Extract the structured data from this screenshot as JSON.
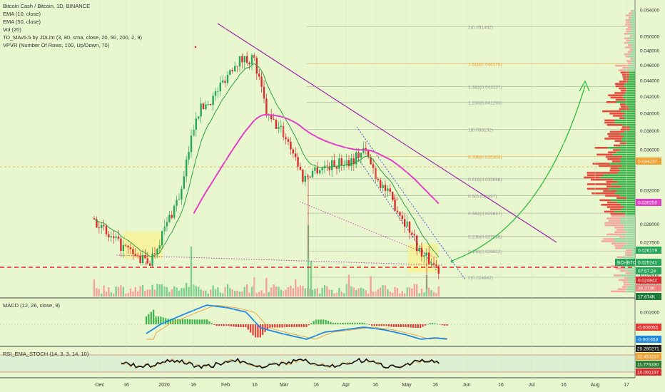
{
  "legend": {
    "title": "Bitcoin Cash / Bitcoin, 1D, BINANCE",
    "ema10": "EMA (10, close)",
    "ema50": "EMA (50, close)",
    "vol": "Vol (20)",
    "tdmav": "TD_MAv5.5 by JDLim (3, 80, sma, close, 20, 50, 200, 2, 9)",
    "vpvr": "VPVR (Number Of Rows, 100, Up/Down, 70)"
  },
  "macd_label": "MACD (12, 26, close, 9)",
  "rsi_label": "RSI_EMA_STOCH (14, 3, 3, 14, 10)",
  "colors": {
    "background": "#e9f7cf",
    "up": "#26a65b",
    "down": "#d92b2b",
    "ema10": "#2e9e3e",
    "ema50": "#e040c8",
    "trendline": "#9c27b0",
    "arrow": "#2ebd3e",
    "support": "#e02020",
    "dashed_orange": "#f0a030",
    "macd_line": "#1e88e5",
    "signal_line": "#e8a040"
  },
  "fib_levels": [
    {
      "ratio": "2",
      "price": 0.051462,
      "label": "2(0.051462)",
      "color": "#9a9a9a"
    },
    {
      "ratio": "1.618",
      "price": 0.046178,
      "label": "1.618(0.046178)",
      "color": "#f0a030"
    },
    {
      "ratio": "1.382",
      "price": 0.043237,
      "label": "1.382(0.043237)",
      "color": "#9a9a9a"
    },
    {
      "ratio": "1.236",
      "price": 0.041293,
      "label": "1.236(0.041293)",
      "color": "#9a9a9a"
    },
    {
      "ratio": "1",
      "price": 0.038192,
      "label": "1(0.038192)",
      "color": "#9a9a9a"
    },
    {
      "ratio": "0.786",
      "price": 0.035304,
      "label": "0.786(0.035304)",
      "color": "#f0a030"
    },
    {
      "ratio": "0.618",
      "price": 0.033068,
      "label": "0.618(0.033068)",
      "color": "#9a9a9a"
    },
    {
      "ratio": "0.5",
      "price": 0.031497,
      "label": "0.5(0.031497)",
      "color": "#9a9a9a"
    },
    {
      "ratio": "0.382",
      "price": 0.029927,
      "label": "0.382(0.029927)",
      "color": "#9a9a9a"
    },
    {
      "ratio": "0.236",
      "price": 0.027986,
      "label": "0.236(0.027986)",
      "color": "#9a9a9a"
    },
    {
      "ratio": "0.148",
      "price": 0.026812,
      "label": "0.148(0.026812)",
      "color": "#9a9a9a"
    },
    {
      "ratio": "0",
      "price": 0.024842,
      "label": "0(0.024842)",
      "color": "#9a9a9a"
    }
  ],
  "price_ticks": [
    "0.054000",
    "0.050000",
    "0.048000",
    "0.046000",
    "0.044000",
    "0.042000",
    "0.040000",
    "0.038000",
    "0.036000",
    "0.032000",
    "0.029000",
    "0.027500",
    "0.025000"
  ],
  "price_tags": [
    {
      "text": "0.034237",
      "bg": "#f0a030",
      "fg": "#ffffff"
    },
    {
      "text": "0.026179",
      "bg": "#26a65b",
      "fg": "#ffffff"
    },
    {
      "text": "BCHBTC",
      "bg": "#26a65b",
      "fg": "#ffffff"
    },
    {
      "text": "0.025241",
      "bg": "#26a65b",
      "fg": "#ffffff"
    },
    {
      "text": "07:57:24",
      "bg": "#26a65b",
      "fg": "#ffffff"
    },
    {
      "text": "0.024842",
      "bg": "#d92b2b",
      "fg": "#ffffff"
    },
    {
      "text": "36.373K",
      "bg": "#f08080",
      "fg": "#ffffff"
    },
    {
      "text": "17.674K",
      "bg": "#1e7a3a",
      "fg": "#ffffff"
    },
    {
      "text": "0.030250",
      "bg": "#e040c8",
      "fg": "#ffffff"
    }
  ],
  "macd_ticks": [
    "0.002000",
    "-0.000055",
    "-0.001658",
    "-0.002000"
  ],
  "rsi_ticks": [
    "25.280271",
    "32.453257",
    "11.776330",
    "10.091197"
  ],
  "time_labels": [
    "Dec",
    "16",
    "2020",
    "16",
    "Feb",
    "16",
    "Mar",
    "16",
    "Apr",
    "16",
    "May",
    "16",
    "Jun",
    "16",
    "Jul",
    "16",
    "Aug",
    "17"
  ],
  "annotations": {
    "b1": "B1",
    "marker": "9"
  },
  "chart_data": {
    "type": "candlestick",
    "symbol": "BCHBTC",
    "interval": "1D",
    "exchange": "BINANCE",
    "ylim": [
      0.0238,
      0.055
    ],
    "y_scale": "log",
    "series": [
      {
        "name": "EMA (10, close)"
      },
      {
        "name": "EMA (50, close)"
      }
    ],
    "key_points": [
      {
        "date": "Dec 1",
        "close": 0.0289
      },
      {
        "date": "Dec 16",
        "close": 0.0275
      },
      {
        "date": "Jan 1",
        "close": 0.0262
      },
      {
        "date": "Jan 16",
        "close": 0.0315
      },
      {
        "date": "Feb 1",
        "close": 0.042
      },
      {
        "date": "Feb 20",
        "close": 0.047
      },
      {
        "date": "Mar 1",
        "close": 0.0385
      },
      {
        "date": "Mar 16",
        "close": 0.0325
      },
      {
        "date": "Apr 1",
        "close": 0.034
      },
      {
        "date": "Apr 12",
        "close": 0.0358
      },
      {
        "date": "May 1",
        "close": 0.029
      },
      {
        "date": "May 18",
        "close": 0.02524
      }
    ],
    "last_price": 0.025241,
    "support": 0.024842,
    "resistance_poc": 0.034237
  }
}
